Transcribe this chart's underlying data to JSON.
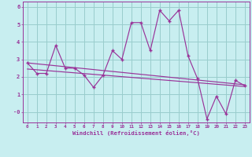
{
  "xlabel": "Windchill (Refroidissement éolien,°C)",
  "bg_color": "#c8eef0",
  "line_color": "#993399",
  "grid_color": "#99cccc",
  "hours": [
    0,
    1,
    2,
    3,
    4,
    5,
    6,
    7,
    8,
    9,
    10,
    11,
    12,
    13,
    14,
    15,
    16,
    17,
    18,
    19,
    20,
    21,
    22,
    23
  ],
  "data": [
    2.8,
    2.2,
    2.2,
    3.8,
    2.5,
    2.5,
    2.1,
    1.4,
    2.1,
    3.5,
    3.0,
    5.1,
    5.1,
    3.5,
    5.8,
    5.2,
    5.8,
    3.2,
    1.9,
    -0.4,
    0.9,
    -0.1,
    1.8,
    1.5
  ],
  "trend1_x": [
    0,
    23
  ],
  "trend1_y": [
    2.8,
    1.55
  ],
  "trend2_x": [
    0,
    23
  ],
  "trend2_y": [
    2.45,
    1.45
  ],
  "ylim": [
    -0.6,
    6.3
  ],
  "xlim": [
    -0.5,
    23.5
  ],
  "yticks": [
    6,
    5,
    4,
    3,
    2,
    1,
    0
  ],
  "ytick_labels": [
    "6",
    "5",
    "4",
    "3",
    "2",
    "1",
    "-0"
  ]
}
